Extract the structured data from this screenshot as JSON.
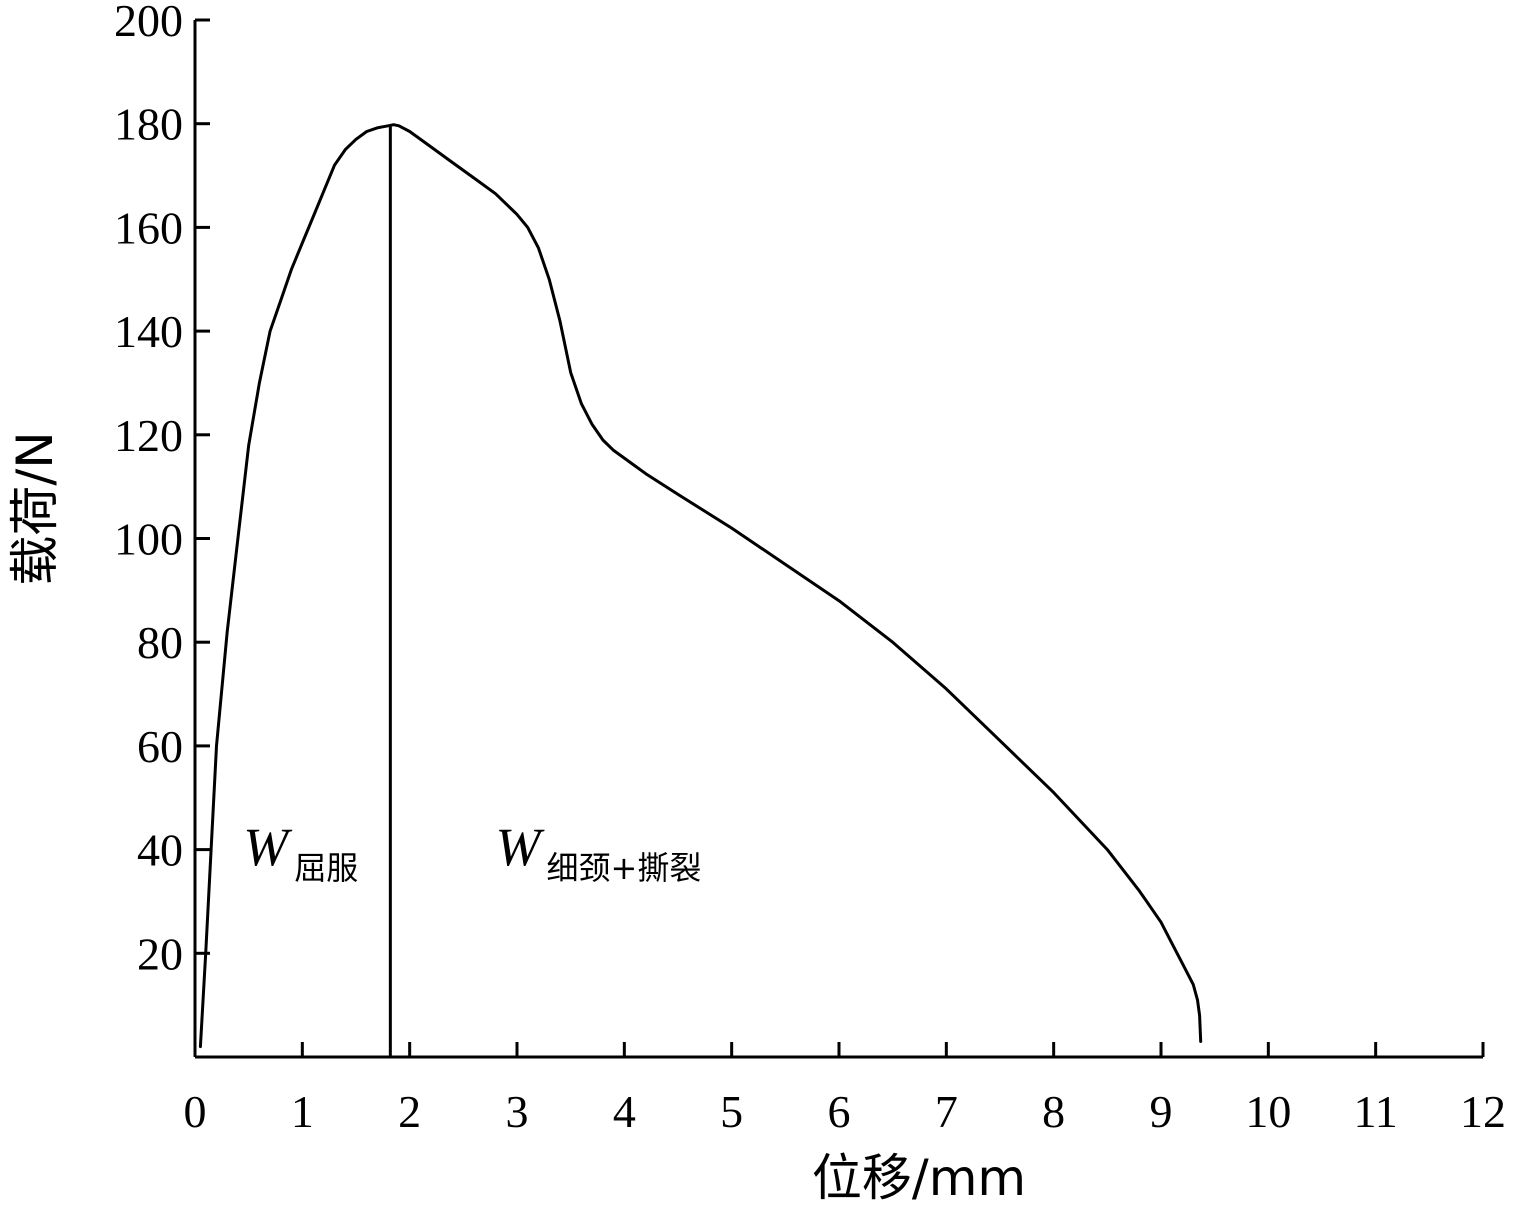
{
  "chart_data": {
    "type": "line",
    "xlabel": "位移/mm",
    "ylabel": "载荷/N",
    "xlim": [
      0,
      12
    ],
    "ylim": [
      0,
      200
    ],
    "x_ticks": [
      "0",
      "1",
      "2",
      "3",
      "4",
      "5",
      "6",
      "7",
      "8",
      "9",
      "10",
      "11",
      "12"
    ],
    "y_ticks": [
      "20",
      "40",
      "60",
      "80",
      "100",
      "120",
      "140",
      "160",
      "180",
      "200"
    ],
    "grid": false,
    "legend": "none",
    "series": [
      {
        "color": "#000000",
        "x": [
          0.05,
          0.1,
          0.15,
          0.2,
          0.3,
          0.4,
          0.5,
          0.6,
          0.7,
          0.8,
          0.9,
          1.0,
          1.1,
          1.2,
          1.3,
          1.4,
          1.5,
          1.6,
          1.7,
          1.8,
          1.85,
          1.9,
          2.0,
          2.2,
          2.4,
          2.6,
          2.8,
          3.0,
          3.1,
          3.2,
          3.3,
          3.4,
          3.5,
          3.6,
          3.7,
          3.8,
          3.9,
          4.0,
          4.2,
          4.5,
          5.0,
          5.5,
          6.0,
          6.5,
          7.0,
          7.5,
          8.0,
          8.5,
          8.8,
          9.0,
          9.1,
          9.2,
          9.3,
          9.34,
          9.36,
          9.37
        ],
        "y": [
          2,
          20,
          40,
          60,
          82,
          100,
          118,
          130,
          140,
          146,
          152,
          157,
          162,
          167,
          172,
          175,
          177,
          178.5,
          179.2,
          179.6,
          179.8,
          179.6,
          178.5,
          175.5,
          172.5,
          169.5,
          166.5,
          162.5,
          160,
          156,
          150,
          142,
          132,
          126,
          122,
          119,
          117,
          115.5,
          112.5,
          108.5,
          102,
          95,
          88,
          80,
          71,
          61,
          51,
          40,
          32,
          26,
          22,
          18,
          14,
          11,
          8,
          3
        ]
      }
    ],
    "annotations": [
      {
        "main": "W",
        "sub": "屈服",
        "x": 0.45,
        "y": 37
      },
      {
        "main": "W",
        "sub": "细颈+撕裂",
        "x": 2.8,
        "y": 37
      }
    ],
    "vline": {
      "x": 1.82,
      "y_from": 0,
      "y_to": 179.8
    }
  }
}
